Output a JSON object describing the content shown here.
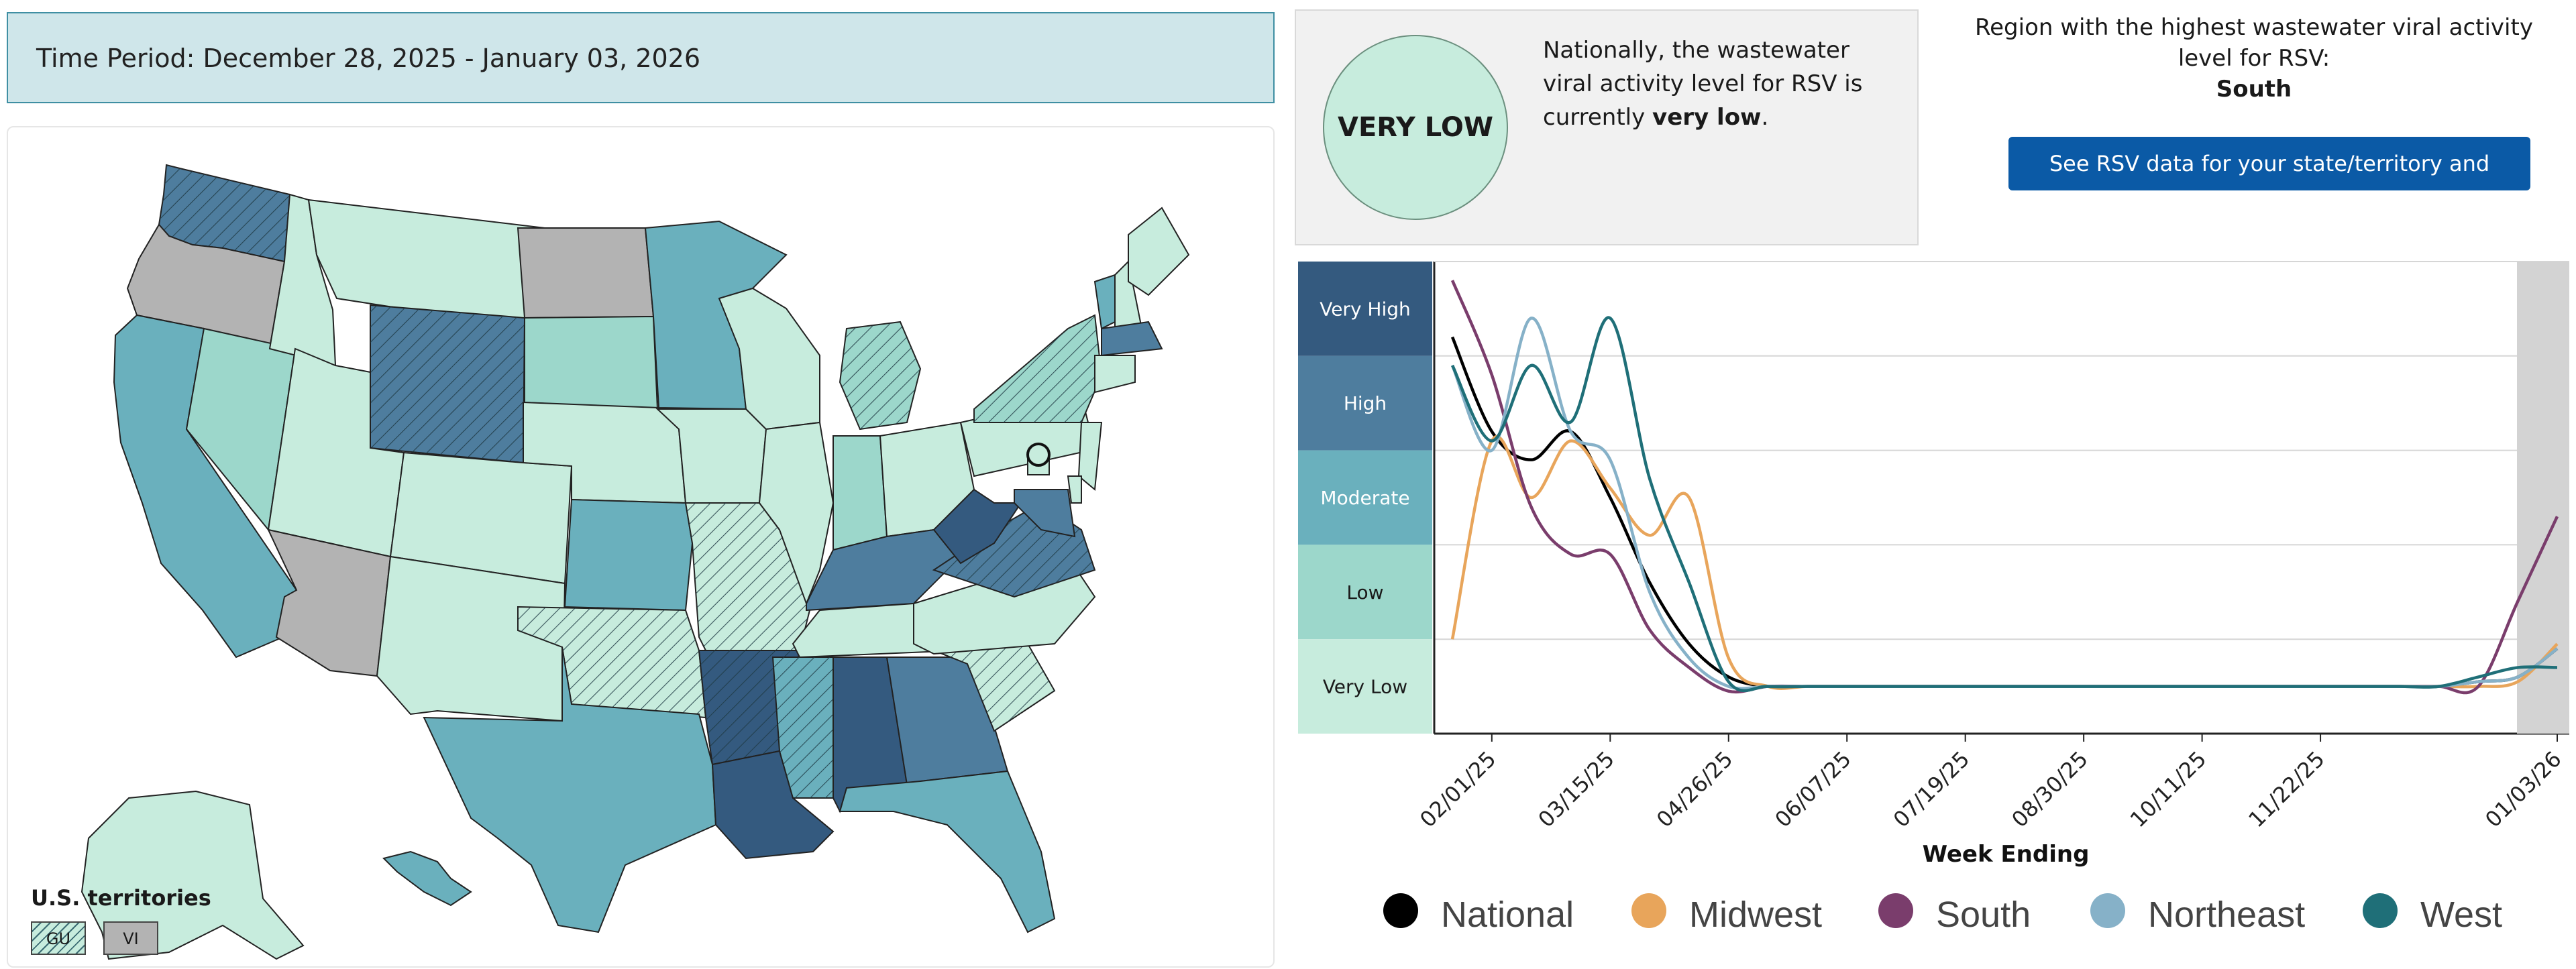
{
  "time_period": "Time Period: December 28, 2025 - January 03, 2026",
  "national": {
    "level": "VERY LOW",
    "text_prefix": "Nationally, the wastewater viral activity level for RSV is currently",
    "text_level": "very low",
    "text_suffix": "."
  },
  "region": {
    "label": "Region with the highest wastewater viral activity level for RSV:",
    "name": "South"
  },
  "see_button": "See RSV data for your state/territory and county.",
  "territories": {
    "title": "U.S. territories",
    "items": [
      "GU",
      "VI"
    ]
  },
  "colors": {
    "very_high": "#345a7f",
    "high": "#4e7d9e",
    "moderate": "#6ab0bd",
    "low": "#9cd7cb",
    "very_low": "#c7ecdd",
    "no_data": "#b3b3b3",
    "national": "#000000",
    "midwest": "#e8a55b",
    "south": "#7a3d6c",
    "northeast": "#86b1c8",
    "west": "#1f6f78"
  },
  "map": {
    "states": [
      {
        "code": "WA",
        "level": "high",
        "hatched": true
      },
      {
        "code": "OR",
        "level": "no_data"
      },
      {
        "code": "CA",
        "level": "moderate"
      },
      {
        "code": "NV",
        "level": "low"
      },
      {
        "code": "ID",
        "level": "very_low"
      },
      {
        "code": "MT",
        "level": "very_low"
      },
      {
        "code": "WY",
        "level": "high",
        "hatched": true
      },
      {
        "code": "UT",
        "level": "very_low"
      },
      {
        "code": "AZ",
        "level": "no_data"
      },
      {
        "code": "CO",
        "level": "very_low"
      },
      {
        "code": "NM",
        "level": "very_low"
      },
      {
        "code": "ND",
        "level": "no_data"
      },
      {
        "code": "SD",
        "level": "low"
      },
      {
        "code": "NE",
        "level": "very_low"
      },
      {
        "code": "KS",
        "level": "moderate"
      },
      {
        "code": "OK",
        "level": "very_low",
        "hatched": true
      },
      {
        "code": "TX",
        "level": "moderate"
      },
      {
        "code": "MN",
        "level": "moderate"
      },
      {
        "code": "IA",
        "level": "very_low"
      },
      {
        "code": "MO",
        "level": "very_low",
        "hatched": true
      },
      {
        "code": "AR",
        "level": "very_high",
        "hatched": true
      },
      {
        "code": "LA",
        "level": "very_high"
      },
      {
        "code": "WI",
        "level": "very_low"
      },
      {
        "code": "IL",
        "level": "very_low"
      },
      {
        "code": "MI",
        "level": "low",
        "hatched": true
      },
      {
        "code": "IN",
        "level": "low"
      },
      {
        "code": "OH",
        "level": "very_low"
      },
      {
        "code": "KY",
        "level": "high"
      },
      {
        "code": "TN",
        "level": "very_low"
      },
      {
        "code": "MS",
        "level": "moderate",
        "hatched": true
      },
      {
        "code": "AL",
        "level": "very_high"
      },
      {
        "code": "GA",
        "level": "high"
      },
      {
        "code": "FL",
        "level": "moderate"
      },
      {
        "code": "SC",
        "level": "very_low",
        "hatched": true
      },
      {
        "code": "NC",
        "level": "very_low"
      },
      {
        "code": "VA",
        "level": "high",
        "hatched": true
      },
      {
        "code": "WV",
        "level": "very_high"
      },
      {
        "code": "PA",
        "level": "very_low"
      },
      {
        "code": "NY",
        "level": "low",
        "hatched": true
      },
      {
        "code": "VT",
        "level": "moderate"
      },
      {
        "code": "NH",
        "level": "very_low"
      },
      {
        "code": "ME",
        "level": "very_low"
      },
      {
        "code": "MA",
        "level": "high"
      },
      {
        "code": "CT",
        "level": "very_low"
      },
      {
        "code": "NJ",
        "level": "very_low"
      },
      {
        "code": "MD",
        "level": "high"
      },
      {
        "code": "DE",
        "level": "very_low"
      },
      {
        "code": "DC",
        "level": "very_low"
      },
      {
        "code": "AK",
        "level": "very_low"
      },
      {
        "code": "HI",
        "level": "moderate"
      }
    ]
  },
  "chart_data": {
    "type": "line",
    "title": "",
    "xlabel": "Week Ending",
    "ylabel": "",
    "y_levels": [
      "Very High",
      "High",
      "Moderate",
      "Low",
      "Very Low"
    ],
    "x_tick_labels": [
      "02/01/25",
      "03/15/25",
      "04/26/25",
      "06/07/25",
      "07/19/25",
      "08/30/25",
      "10/11/25",
      "11/22/25",
      "01/03/26"
    ],
    "x_weeks": [
      0,
      2,
      4,
      6,
      8,
      10,
      12,
      14,
      16,
      18,
      20,
      22,
      24,
      26,
      28,
      30,
      32,
      34,
      36,
      38,
      40,
      42,
      44,
      46,
      48,
      50,
      52,
      54,
      56
    ],
    "ylim": [
      0,
      5
    ],
    "shaded_region": [
      "12/27/25",
      "01/03/26"
    ],
    "legend_position": "bottom",
    "series": [
      {
        "name": "National",
        "color_key": "national",
        "values": [
          4.2,
          3.2,
          2.9,
          3.2,
          2.5,
          1.6,
          0.95,
          0.6,
          0.5,
          0.5,
          0.5,
          0.5,
          0.5,
          0.5,
          0.5,
          0.5,
          0.5,
          0.5,
          0.5,
          0.5,
          0.5,
          0.5,
          0.5,
          0.5,
          0.5,
          0.5,
          0.55,
          0.6,
          0.9
        ]
      },
      {
        "name": "Midwest",
        "color_key": "midwest",
        "values": [
          1.0,
          3.1,
          2.5,
          3.1,
          2.6,
          2.1,
          2.5,
          0.8,
          0.5,
          0.5,
          0.5,
          0.5,
          0.5,
          0.5,
          0.5,
          0.5,
          0.5,
          0.5,
          0.5,
          0.5,
          0.5,
          0.5,
          0.5,
          0.5,
          0.5,
          0.5,
          0.5,
          0.55,
          0.95
        ]
      },
      {
        "name": "South",
        "color_key": "south",
        "values": [
          4.8,
          3.8,
          2.4,
          1.9,
          1.9,
          1.1,
          0.7,
          0.45,
          0.5,
          0.5,
          0.5,
          0.5,
          0.5,
          0.5,
          0.5,
          0.5,
          0.5,
          0.5,
          0.5,
          0.5,
          0.5,
          0.5,
          0.5,
          0.5,
          0.5,
          0.5,
          0.5,
          1.4,
          2.3
        ]
      },
      {
        "name": "Northeast",
        "color_key": "northeast",
        "values": [
          3.9,
          3.0,
          4.4,
          3.2,
          2.9,
          1.5,
          0.8,
          0.5,
          0.5,
          0.5,
          0.5,
          0.5,
          0.5,
          0.5,
          0.5,
          0.5,
          0.5,
          0.5,
          0.5,
          0.5,
          0.5,
          0.5,
          0.5,
          0.5,
          0.5,
          0.5,
          0.55,
          0.6,
          0.9
        ]
      },
      {
        "name": "West",
        "color_key": "west",
        "values": [
          3.9,
          3.1,
          3.9,
          3.3,
          4.4,
          2.7,
          1.6,
          0.55,
          0.5,
          0.5,
          0.5,
          0.5,
          0.5,
          0.5,
          0.5,
          0.5,
          0.5,
          0.5,
          0.5,
          0.5,
          0.5,
          0.5,
          0.5,
          0.5,
          0.5,
          0.5,
          0.6,
          0.7,
          0.7
        ]
      }
    ]
  }
}
